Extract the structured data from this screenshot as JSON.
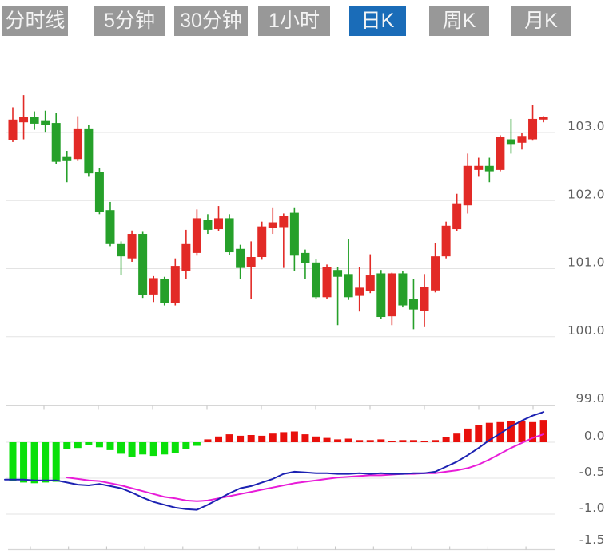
{
  "tabs": [
    {
      "id": "timeline",
      "label": "分时线",
      "selected": false
    },
    {
      "id": "5min",
      "label": "5分钟",
      "selected": false
    },
    {
      "id": "30min",
      "label": "30分钟",
      "selected": false
    },
    {
      "id": "1hour",
      "label": "1小时",
      "selected": false
    },
    {
      "id": "daily-k",
      "label": "日K",
      "selected": true
    },
    {
      "id": "weekly-k",
      "label": "周K",
      "selected": false
    },
    {
      "id": "monthly-k",
      "label": "月K",
      "selected": false
    }
  ],
  "colors": {
    "tab_bg": "#989898",
    "tab_active_bg": "#1a6cb8",
    "tab_text": "#f4f4f4",
    "up": "#e22a26",
    "down": "#26a02a",
    "macd_up": "#e8100c",
    "macd_down": "#0ae00a",
    "dif_line": "#1c22b2",
    "dea_line": "#e81cd8",
    "grid": "#e3e3e3",
    "border": "#d6d6d6",
    "tick": "#c2c2c2",
    "axis_text": "#5f5f5f"
  },
  "chart_data": {
    "type": "candlestick",
    "legend_position": "none",
    "grid": true,
    "panels": [
      {
        "name": "price",
        "ylim": [
          99.0,
          103.96
        ],
        "y_ticks": [
          {
            "label": "103.0",
            "value": 103.0
          },
          {
            "label": "102.0",
            "value": 102.0
          },
          {
            "label": "101.0",
            "value": 101.0
          },
          {
            "label": "100.0",
            "value": 100.0
          },
          {
            "label": "99.0",
            "value": 99.0
          }
        ]
      },
      {
        "name": "macd",
        "ylim": [
          -1.5,
          0.5
        ],
        "y_ticks": [
          {
            "label": "0.0",
            "value": 0.0
          },
          {
            "label": "-0.5",
            "value": -0.5
          },
          {
            "label": "-1.0",
            "value": -1.0
          },
          {
            "label": "-1.5",
            "value": -1.5
          }
        ]
      }
    ],
    "candle_format": [
      "open",
      "high",
      "low",
      "close"
    ],
    "candles": [
      [
        102.89,
        103.37,
        102.86,
        103.19
      ],
      [
        103.15,
        103.55,
        102.9,
        103.23
      ],
      [
        103.23,
        103.31,
        103.04,
        103.13
      ],
      [
        103.18,
        103.32,
        103.01,
        103.11
      ],
      [
        103.14,
        103.29,
        102.54,
        102.57
      ],
      [
        102.64,
        102.73,
        102.27,
        102.58
      ],
      [
        102.61,
        103.24,
        102.58,
        103.06
      ],
      [
        103.06,
        103.11,
        102.35,
        102.4
      ],
      [
        102.42,
        102.48,
        101.8,
        101.83
      ],
      [
        101.86,
        101.98,
        101.33,
        101.36
      ],
      [
        101.36,
        101.4,
        100.9,
        101.18
      ],
      [
        101.15,
        101.56,
        101.1,
        101.51
      ],
      [
        101.51,
        101.54,
        100.57,
        100.61
      ],
      [
        100.62,
        100.89,
        100.51,
        100.86
      ],
      [
        100.85,
        100.88,
        100.46,
        100.5
      ],
      [
        100.49,
        101.15,
        100.46,
        101.04
      ],
      [
        100.96,
        101.57,
        100.85,
        101.36
      ],
      [
        101.23,
        101.87,
        101.19,
        101.74
      ],
      [
        101.71,
        101.8,
        101.51,
        101.57
      ],
      [
        101.58,
        101.92,
        101.55,
        101.74
      ],
      [
        101.74,
        101.8,
        101.2,
        101.24
      ],
      [
        101.29,
        101.35,
        100.85,
        101.01
      ],
      [
        101.02,
        101.4,
        100.55,
        101.17
      ],
      [
        101.17,
        101.69,
        101.13,
        101.62
      ],
      [
        101.6,
        101.9,
        101.51,
        101.68
      ],
      [
        101.61,
        101.81,
        101.01,
        101.77
      ],
      [
        101.82,
        101.9,
        100.97,
        101.19
      ],
      [
        101.23,
        101.28,
        100.85,
        101.08
      ],
      [
        101.09,
        101.14,
        100.56,
        100.58
      ],
      [
        100.58,
        101.06,
        100.55,
        101.02
      ],
      [
        100.98,
        101.02,
        100.17,
        100.88
      ],
      [
        100.92,
        101.44,
        100.54,
        100.58
      ],
      [
        100.6,
        101.02,
        100.37,
        100.72
      ],
      [
        100.67,
        101.21,
        100.64,
        100.9
      ],
      [
        100.93,
        100.98,
        100.26,
        100.29
      ],
      [
        100.3,
        100.94,
        100.17,
        100.93
      ],
      [
        100.93,
        100.96,
        100.43,
        100.46
      ],
      [
        100.55,
        100.85,
        100.11,
        100.4
      ],
      [
        100.38,
        100.92,
        100.14,
        100.73
      ],
      [
        100.68,
        101.38,
        100.65,
        101.18
      ],
      [
        101.18,
        101.69,
        101.15,
        101.63
      ],
      [
        101.58,
        102.1,
        101.55,
        101.96
      ],
      [
        101.93,
        102.69,
        101.81,
        102.51
      ],
      [
        102.45,
        102.63,
        102.35,
        102.51
      ],
      [
        102.51,
        102.63,
        102.27,
        102.43
      ],
      [
        102.45,
        102.96,
        102.43,
        102.93
      ],
      [
        102.9,
        103.2,
        102.69,
        102.82
      ],
      [
        102.85,
        103.0,
        102.75,
        102.95
      ],
      [
        102.9,
        103.4,
        102.88,
        103.2
      ],
      [
        103.19,
        103.24,
        103.15,
        103.23
      ]
    ],
    "macd": {
      "histogram": [
        -0.54,
        -0.56,
        -0.57,
        -0.56,
        -0.55,
        -0.09,
        -0.08,
        -0.04,
        -0.07,
        -0.11,
        -0.16,
        -0.21,
        -0.17,
        -0.19,
        -0.17,
        -0.15,
        -0.1,
        -0.05,
        0.04,
        0.08,
        0.11,
        0.09,
        0.1,
        0.09,
        0.12,
        0.14,
        0.15,
        0.11,
        0.08,
        0.06,
        0.04,
        0.05,
        0.03,
        0.03,
        0.04,
        0.02,
        0.03,
        0.03,
        0.02,
        0.03,
        0.07,
        0.12,
        0.19,
        0.24,
        0.27,
        0.28,
        0.3,
        0.3,
        0.28,
        0.31
      ],
      "dif": [
        -0.52,
        -0.52,
        -0.53,
        -0.53,
        -0.53,
        -0.56,
        -0.59,
        -0.6,
        -0.58,
        -0.61,
        -0.64,
        -0.7,
        -0.77,
        -0.83,
        -0.87,
        -0.91,
        -0.93,
        -0.94,
        -0.87,
        -0.79,
        -0.71,
        -0.64,
        -0.61,
        -0.56,
        -0.51,
        -0.44,
        -0.41,
        -0.42,
        -0.43,
        -0.43,
        -0.44,
        -0.44,
        -0.43,
        -0.44,
        -0.43,
        -0.44,
        -0.44,
        -0.43,
        -0.43,
        -0.41,
        -0.34,
        -0.27,
        -0.18,
        -0.08,
        0.03,
        0.12,
        0.22,
        0.3,
        0.37,
        0.42
      ],
      "dea": [
        null,
        null,
        null,
        null,
        null,
        -0.49,
        -0.51,
        -0.53,
        -0.54,
        -0.57,
        -0.6,
        -0.64,
        -0.68,
        -0.72,
        -0.76,
        -0.78,
        -0.81,
        -0.82,
        -0.81,
        -0.78,
        -0.75,
        -0.72,
        -0.69,
        -0.66,
        -0.63,
        -0.6,
        -0.57,
        -0.55,
        -0.53,
        -0.51,
        -0.49,
        -0.48,
        -0.47,
        -0.46,
        -0.46,
        -0.45,
        -0.44,
        -0.44,
        -0.43,
        -0.43,
        -0.41,
        -0.39,
        -0.36,
        -0.31,
        -0.24,
        -0.16,
        -0.08,
        -0.01,
        0.06,
        0.11
      ]
    }
  }
}
